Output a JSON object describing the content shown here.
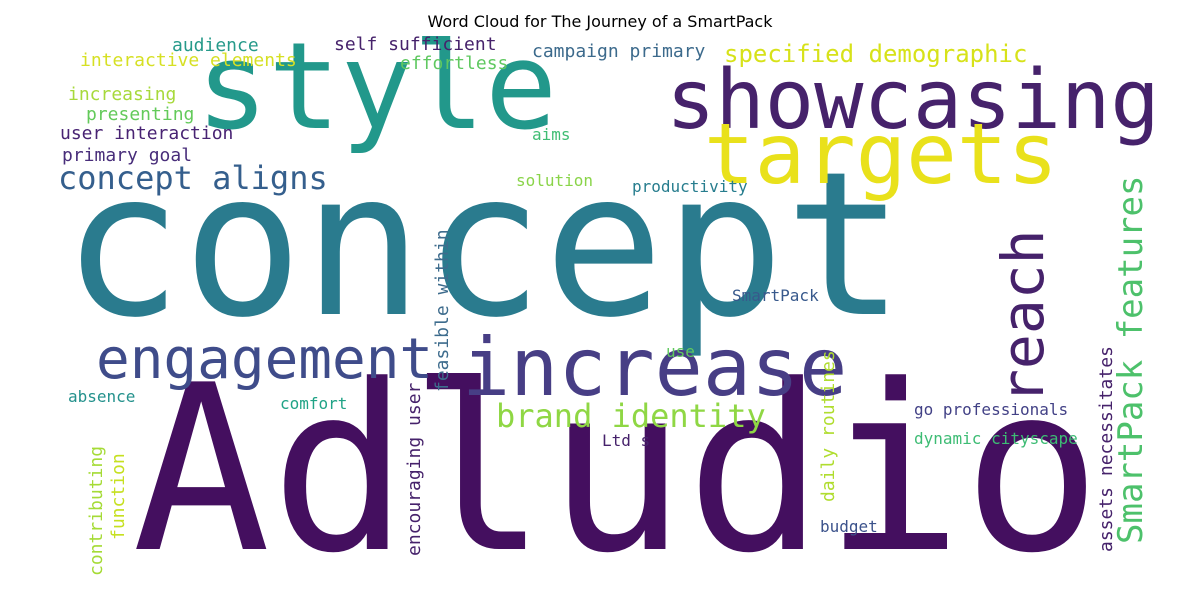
{
  "title": "Word Cloud for The Journey of a SmartPack",
  "words": {
    "concept": {
      "text": "concept",
      "color": "#2a7b8e"
    },
    "adludio": {
      "text": "Adludio",
      "color": "#440f5f"
    },
    "style": {
      "text": "style",
      "color": "#22988b"
    },
    "showcasing": {
      "text": "showcasing",
      "color": "#46226b"
    },
    "targets": {
      "text": "targets",
      "color": "#e9e11b"
    },
    "increase": {
      "text": "increase",
      "color": "#473e85"
    },
    "engagement": {
      "text": "engagement",
      "color": "#3f4c8a"
    },
    "reach": {
      "text": "reach",
      "color": "#46226b"
    },
    "smartpack_features": {
      "text": "SmartPack features",
      "color": "#4dc16b"
    },
    "brand_identity": {
      "text": "brand identity",
      "color": "#8fd744"
    },
    "concept_aligns": {
      "text": "concept aligns",
      "color": "#355f8d"
    },
    "specified_demographic": {
      "text": "specified demographic",
      "color": "#d7e219"
    },
    "self_sufficient": {
      "text": "self sufficient",
      "color": "#46226b"
    },
    "campaign_primary": {
      "text": "campaign primary",
      "color": "#3c6a8c"
    },
    "audience": {
      "text": "audience",
      "color": "#269a8a"
    },
    "interactive_elements": {
      "text": "interactive elements",
      "color": "#d6e024"
    },
    "effortless": {
      "text": "effortless",
      "color": "#5fc860"
    },
    "increasing": {
      "text": "increasing",
      "color": "#a7d93b"
    },
    "presenting": {
      "text": "presenting",
      "color": "#63ca5a"
    },
    "user_interaction": {
      "text": "user interaction",
      "color": "#482373"
    },
    "primary_goal": {
      "text": "primary goal",
      "color": "#482d7a"
    },
    "aims": {
      "text": "aims",
      "color": "#3fbd73"
    },
    "solution": {
      "text": "solution",
      "color": "#8ad449"
    },
    "productivity": {
      "text": "productivity",
      "color": "#277d8e"
    },
    "smartpack": {
      "text": "SmartPack",
      "color": "#38598c"
    },
    "feasible_within": {
      "text": "feasible within",
      "color": "#3e6c8d"
    },
    "use": {
      "text": "use",
      "color": "#60c95e"
    },
    "absence": {
      "text": "absence",
      "color": "#23918c"
    },
    "comfort": {
      "text": "comfort",
      "color": "#20a386"
    },
    "go_professionals": {
      "text": "go professionals",
      "color": "#424186"
    },
    "dynamic_cityscape": {
      "text": "dynamic cityscape",
      "color": "#3dbc74"
    },
    "ltd_s": {
      "text": "Ltd s",
      "color": "#46226b"
    },
    "encouraging_user": {
      "text": "encouraging user",
      "color": "#46226b"
    },
    "contributing": {
      "text": "contributing",
      "color": "#a5db36"
    },
    "function": {
      "text": "function",
      "color": "#c6e020"
    },
    "daily_routines": {
      "text": "daily routines",
      "color": "#b0dd2f"
    },
    "assets_necessitates": {
      "text": "assets necessitates",
      "color": "#46226b"
    },
    "budget": {
      "text": "budget",
      "color": "#3b528b"
    }
  }
}
